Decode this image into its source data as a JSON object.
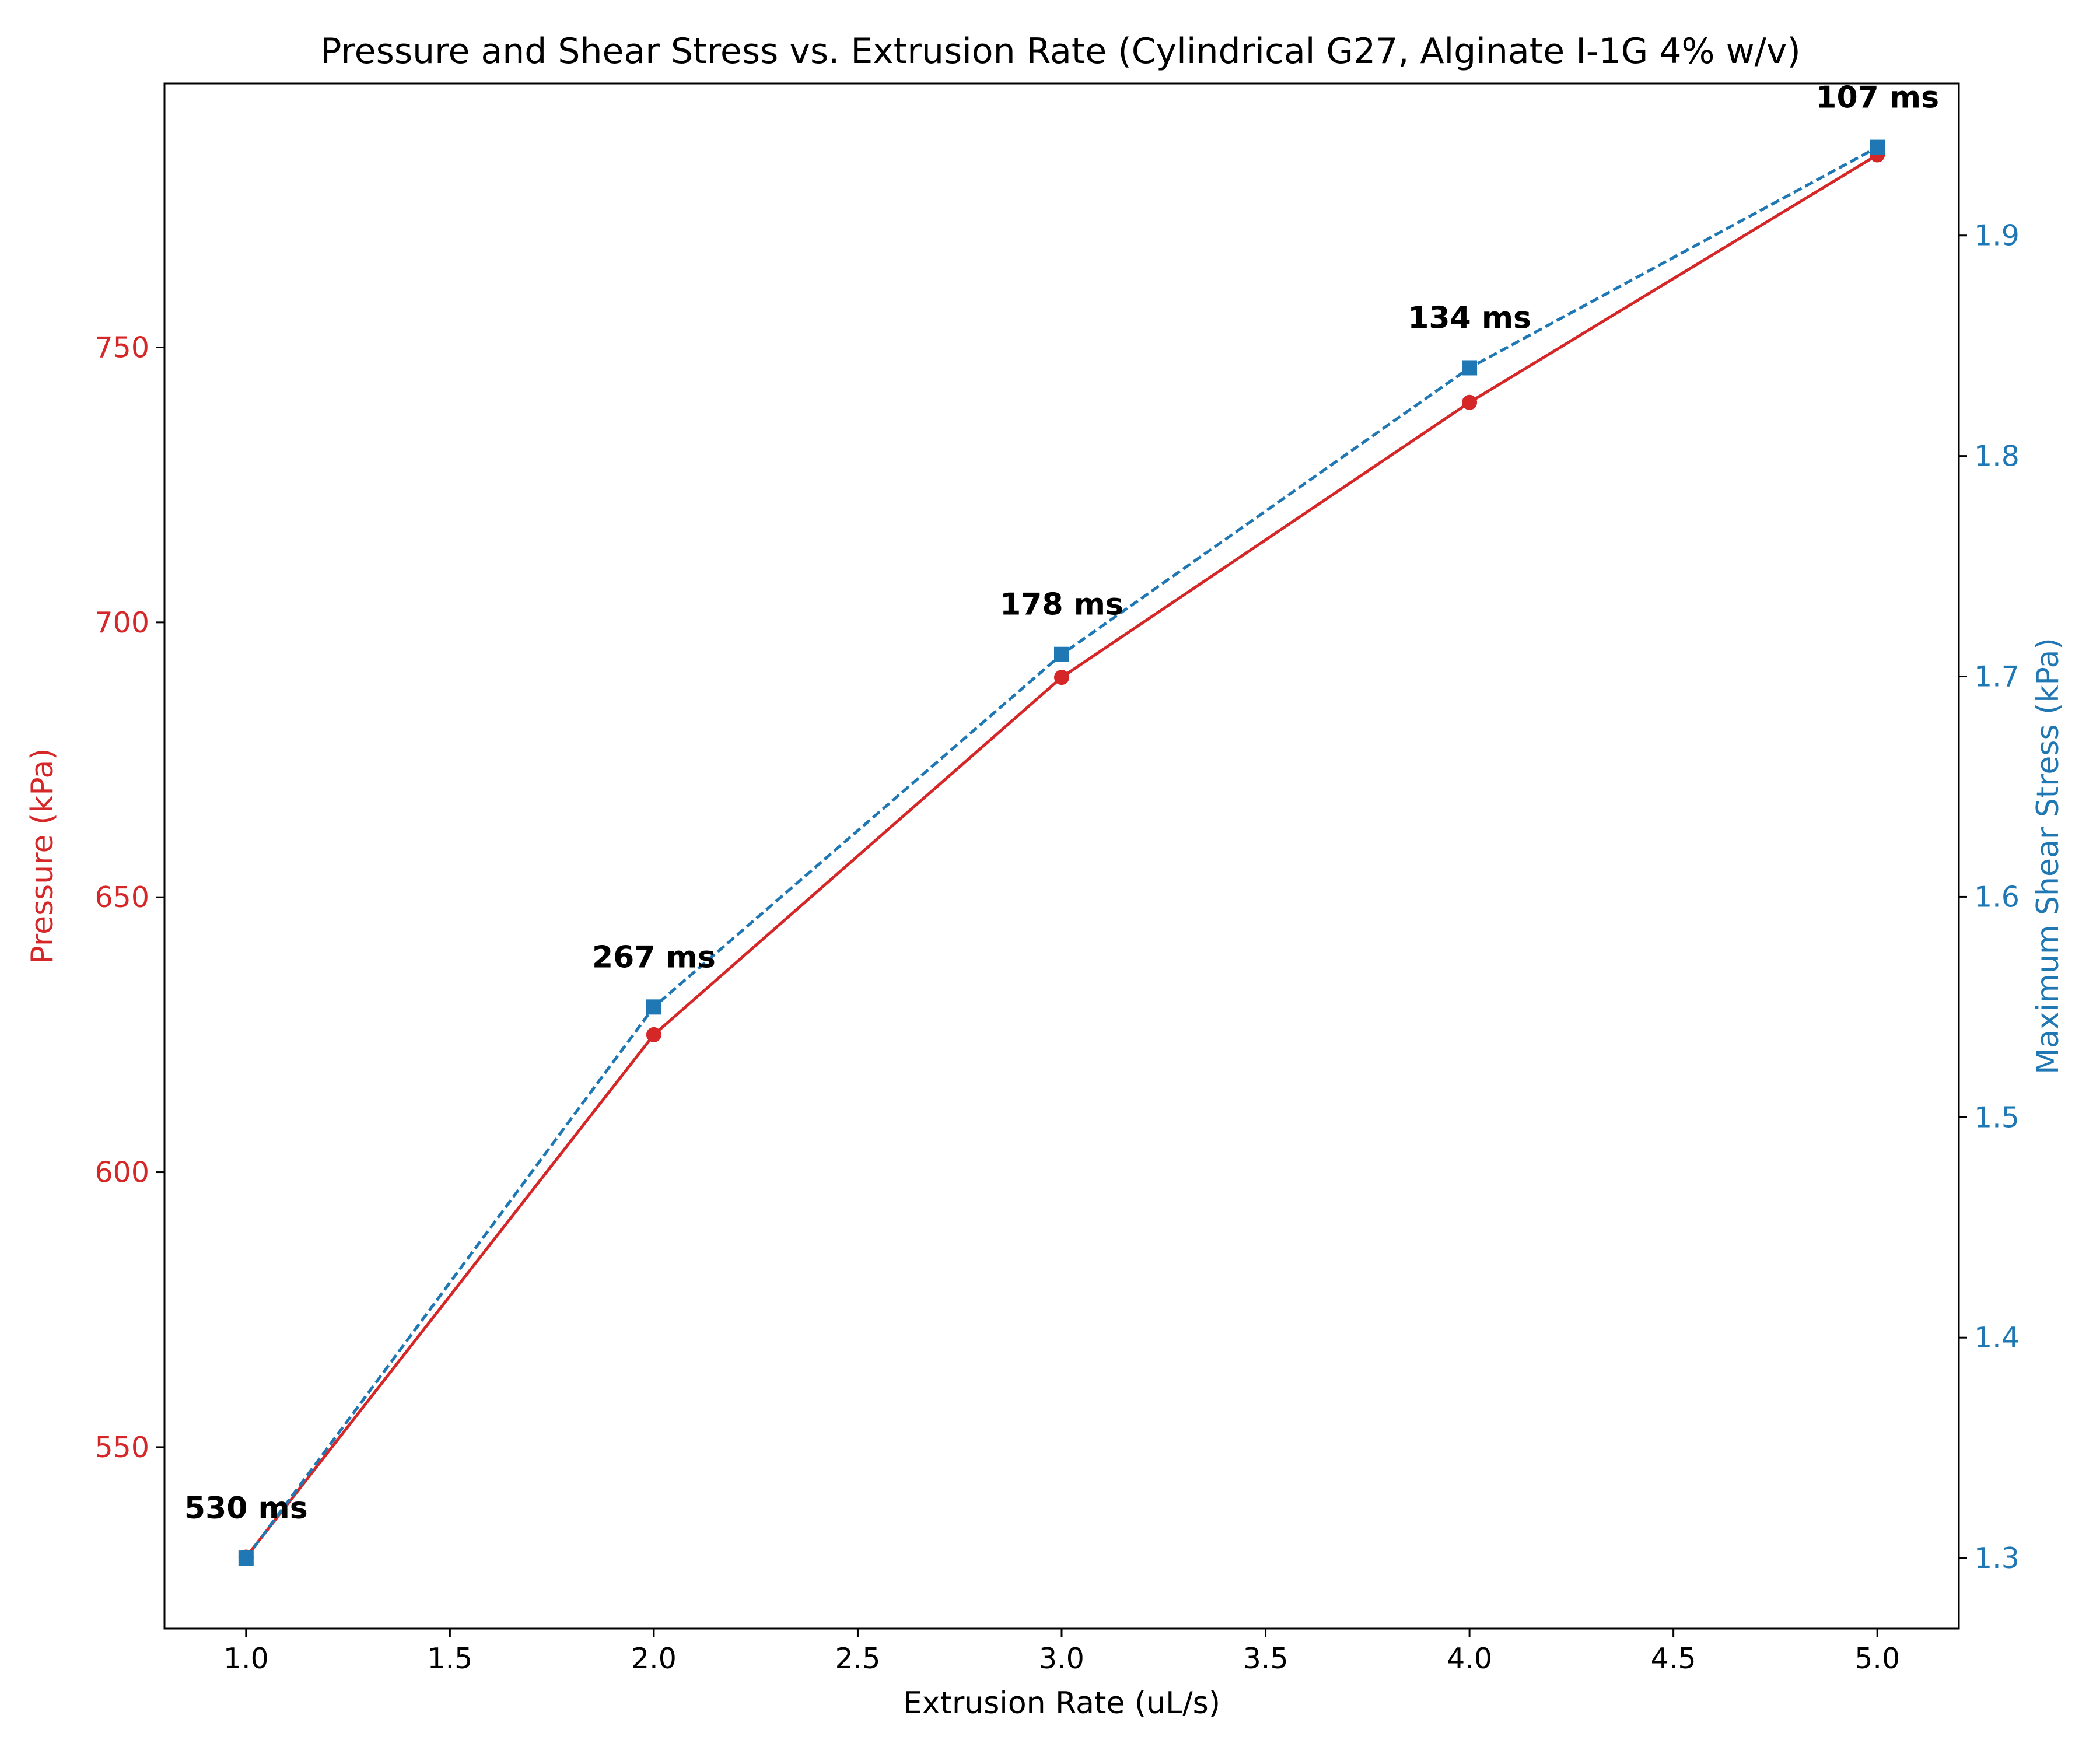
{
  "chart_data": {
    "type": "line",
    "title": "Pressure and Shear Stress vs. Extrusion Rate (Cylindrical G27, Alginate I-1G 4% w/v)",
    "xlabel": "Extrusion Rate (uL/s)",
    "ylabel_left": "Pressure (kPa)",
    "ylabel_right": "Maximum Shear Stress (kPa)",
    "x": [
      1.0,
      2.0,
      3.0,
      4.0,
      5.0
    ],
    "xlim": [
      0.8,
      5.2
    ],
    "ylim_left": [
      517,
      798
    ],
    "ylim_right": [
      1.268,
      1.969
    ],
    "xticks": [
      1.0,
      1.5,
      2.0,
      2.5,
      3.0,
      3.5,
      4.0,
      4.5,
      5.0
    ],
    "xtick_labels": [
      "1.0",
      "1.5",
      "2.0",
      "2.5",
      "3.0",
      "3.5",
      "4.0",
      "4.5",
      "5.0"
    ],
    "yticks_left": [
      550,
      600,
      650,
      700,
      750
    ],
    "ytick_labels_left": [
      "550",
      "600",
      "650",
      "700",
      "750"
    ],
    "yticks_right": [
      1.3,
      1.4,
      1.5,
      1.6,
      1.7,
      1.8,
      1.9
    ],
    "ytick_labels_right": [
      "1.3",
      "1.4",
      "1.5",
      "1.6",
      "1.7",
      "1.8",
      "1.9"
    ],
    "grid": false,
    "series": [
      {
        "axis": "left",
        "values": [
          530,
          625,
          690,
          740,
          785
        ],
        "color": "#d62728",
        "line_style": "solid",
        "marker": "circle"
      },
      {
        "axis": "right",
        "values": [
          1.3,
          1.55,
          1.71,
          1.84,
          1.94
        ],
        "color": "#1f77b4",
        "line_style": "dashed",
        "marker": "square"
      }
    ],
    "annotations": [
      "530 ms",
      "267 ms",
      "178 ms",
      "134 ms",
      "107 ms"
    ],
    "left_axis_color": "#d62728",
    "right_axis_color": "#1f77b4"
  }
}
